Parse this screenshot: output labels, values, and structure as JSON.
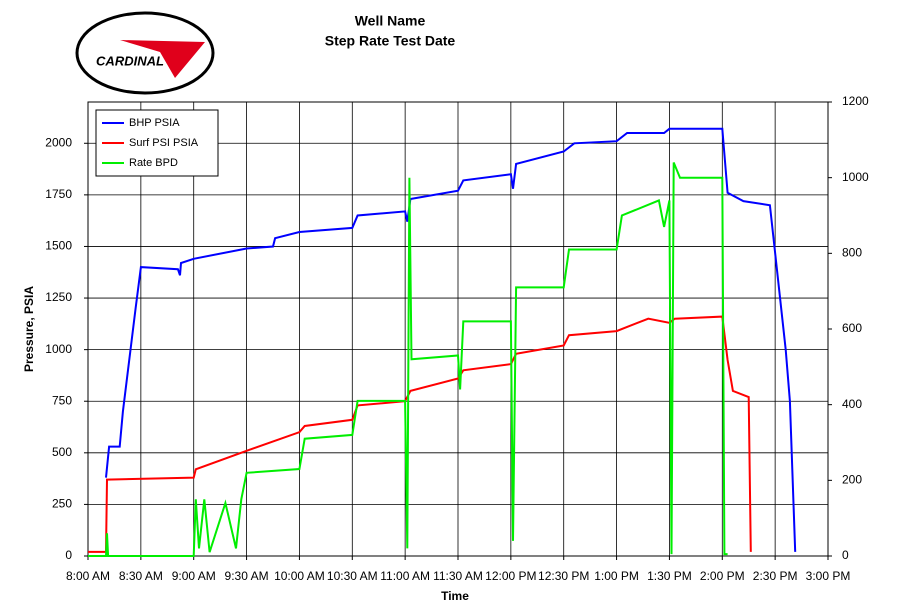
{
  "chart_data": {
    "type": "line",
    "logo_text": "CARDINAL",
    "title": "Well Name",
    "subtitle": "Step Rate Test Date",
    "y_label": "Pressure, PSIA",
    "x_label": "Time",
    "xlim": [
      8,
      15
    ],
    "xticks": [
      {
        "value": 8,
        "label": "8:00 AM"
      },
      {
        "value": 8.5,
        "label": "8:30 AM"
      },
      {
        "value": 9,
        "label": "9:00 AM"
      },
      {
        "value": 9.5,
        "label": "9:30 AM"
      },
      {
        "value": 10,
        "label": "10:00 AM"
      },
      {
        "value": 10.5,
        "label": "10:30 AM"
      },
      {
        "value": 11,
        "label": "11:00 AM"
      },
      {
        "value": 11.5,
        "label": "11:30 AM"
      },
      {
        "value": 12,
        "label": "12:00 PM"
      },
      {
        "value": 12.5,
        "label": "12:30 PM"
      },
      {
        "value": 13,
        "label": "1:00 PM"
      },
      {
        "value": 13.5,
        "label": "1:30 PM"
      },
      {
        "value": 14,
        "label": "2:00 PM"
      },
      {
        "value": 14.5,
        "label": "2:30 PM"
      },
      {
        "value": 15,
        "label": "3:00 PM"
      }
    ],
    "ylim": [
      0,
      2200
    ],
    "yticks": [
      0,
      250,
      500,
      750,
      1000,
      1250,
      1500,
      1750,
      2000
    ],
    "y2lim": [
      0,
      1200
    ],
    "y2ticks": [
      0,
      200,
      400,
      600,
      800,
      1000,
      1200
    ],
    "grid": true,
    "legend": "upper left",
    "series": [
      {
        "name": "BHP PSIA",
        "color": "#0000ff",
        "x": [
          8.17,
          8.2,
          8.3,
          8.33,
          8.45,
          8.5,
          8.85,
          8.87,
          8.88,
          9.0,
          9.5,
          9.75,
          9.77,
          10.0,
          10.5,
          10.55,
          11.0,
          11.02,
          11.05,
          11.5,
          11.55,
          12.0,
          12.02,
          12.05,
          12.5,
          12.6,
          13.0,
          13.1,
          13.45,
          13.5,
          14.0,
          14.05,
          14.2,
          14.45,
          14.6,
          14.64,
          14.69
        ],
        "values": [
          380,
          530,
          530,
          700,
          1200,
          1400,
          1390,
          1360,
          1420,
          1440,
          1490,
          1500,
          1540,
          1570,
          1590,
          1650,
          1670,
          1620,
          1730,
          1770,
          1820,
          1850,
          1780,
          1900,
          1960,
          2000,
          2010,
          2050,
          2050,
          2070,
          2070,
          1760,
          1720,
          1700,
          1000,
          750,
          20
        ]
      },
      {
        "name": "Surf PSI PSIA",
        "color": "#ff0000",
        "x": [
          8.0,
          8.17,
          8.18,
          9.0,
          9.02,
          9.5,
          10.0,
          10.05,
          10.5,
          10.55,
          11.0,
          11.05,
          11.5,
          11.55,
          12.0,
          12.05,
          12.5,
          12.55,
          13.0,
          13.1,
          13.3,
          13.5,
          13.55,
          14.0,
          14.05,
          14.1,
          14.25,
          14.27
        ],
        "values": [
          20,
          20,
          370,
          380,
          420,
          510,
          600,
          630,
          660,
          730,
          750,
          800,
          860,
          900,
          930,
          980,
          1020,
          1070,
          1090,
          1110,
          1150,
          1130,
          1150,
          1160,
          950,
          800,
          770,
          20
        ]
      },
      {
        "name": "Rate BPD",
        "color": "#00ee00",
        "axis": "y2",
        "x": [
          8.0,
          8.17,
          8.18,
          8.19,
          9.0,
          9.02,
          9.05,
          9.1,
          9.15,
          9.3,
          9.4,
          9.45,
          9.5,
          10.0,
          10.05,
          10.5,
          10.55,
          11.0,
          11.02,
          11.04,
          11.06,
          11.5,
          11.52,
          11.55,
          12.0,
          12.02,
          12.05,
          12.5,
          12.55,
          13.0,
          13.05,
          13.4,
          13.45,
          13.5,
          13.52,
          13.54,
          13.6,
          14.0,
          14.02,
          14.05
        ],
        "values": [
          0,
          0,
          60,
          0,
          0,
          150,
          20,
          150,
          10,
          140,
          20,
          150,
          220,
          230,
          310,
          320,
          410,
          410,
          20,
          1000,
          520,
          530,
          440,
          620,
          620,
          40,
          710,
          710,
          810,
          810,
          900,
          940,
          870,
          940,
          5,
          1040,
          1000,
          1000,
          5,
          5
        ]
      }
    ]
  }
}
